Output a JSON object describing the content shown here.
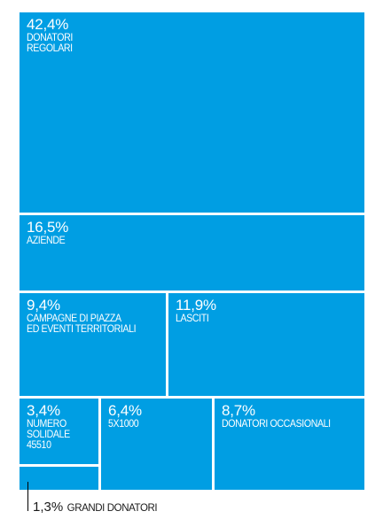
{
  "chart_data": {
    "type": "treemap",
    "color": "#009ee3",
    "items": [
      {
        "id": "donatori-regolari",
        "value": 42.4,
        "value_label": "42,4%",
        "label": "DONATORI\nREGOLARI"
      },
      {
        "id": "aziende",
        "value": 16.5,
        "value_label": "16,5%",
        "label": "AZIENDE"
      },
      {
        "id": "campagne",
        "value": 9.4,
        "value_label": "9,4%",
        "label": "CAMPAGNE DI PIAZZA\nED EVENTI TERRITORIALI"
      },
      {
        "id": "lasciti",
        "value": 11.9,
        "value_label": "11,9%",
        "label": "LASCITI"
      },
      {
        "id": "numero-solidale",
        "value": 3.4,
        "value_label": "3,4%",
        "label": "NUMERO\nSOLIDALE\n45510"
      },
      {
        "id": "5x1000",
        "value": 6.4,
        "value_label": "6,4%",
        "label": "5X1000"
      },
      {
        "id": "donatori-occasionali",
        "value": 8.7,
        "value_label": "8,7%",
        "label": "DONATORI OCCASIONALI"
      },
      {
        "id": "grandi-donatori",
        "value": 1.3,
        "value_label": "1,3%",
        "label": "GRANDI DONATORI"
      }
    ]
  }
}
